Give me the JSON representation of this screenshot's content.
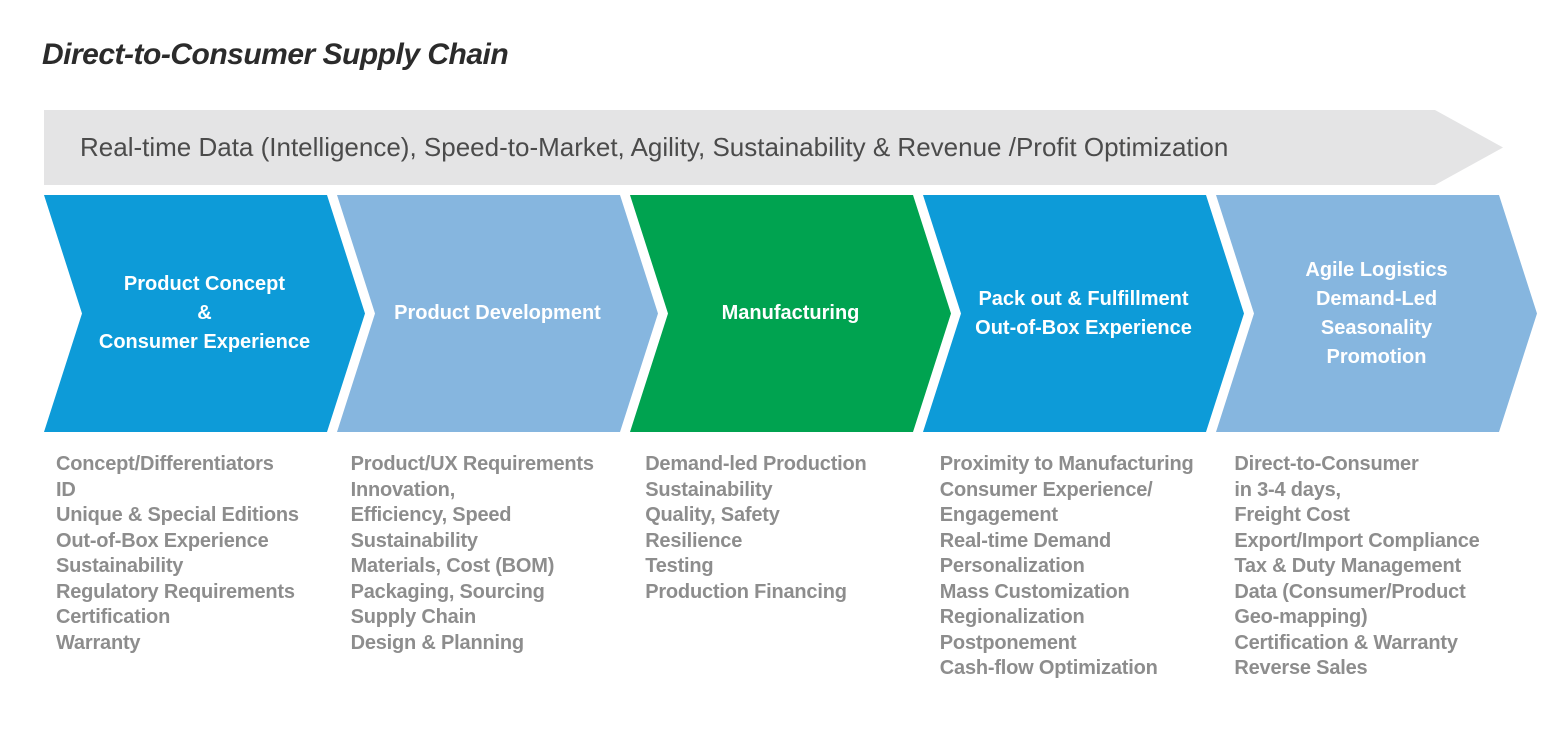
{
  "page": {
    "title": "Direct-to-Consumer Supply Chain"
  },
  "banner": {
    "text": "Real-time Data (Intelligence), Speed-to-Market, Agility, Sustainability & Revenue /Profit Optimization",
    "bg_color": "#e4e4e5",
    "text_color": "#4b4b4b"
  },
  "colors": {
    "blue": "#0d9bd8",
    "light_blue": "#86b6df",
    "green": "#00a350",
    "title_text": "#2b2b2b",
    "list_text": "#8d8d8d",
    "stage_label_text": "#ffffff"
  },
  "stages": [
    {
      "label_lines": [
        "Product Concept",
        "&",
        "Consumer Experience"
      ],
      "color_key": "blue",
      "items": [
        "Concept/Differentiators",
        "ID",
        "Unique & Special Editions",
        "Out-of-Box Experience",
        "Sustainability",
        "Regulatory Requirements",
        "Certification",
        "Warranty"
      ]
    },
    {
      "label_lines": [
        "Product Development"
      ],
      "color_key": "light_blue",
      "items": [
        "Product/UX Requirements",
        "Innovation,",
        "Efficiency, Speed",
        "Sustainability",
        "Materials, Cost (BOM)",
        "Packaging, Sourcing",
        "Supply Chain",
        "Design & Planning"
      ]
    },
    {
      "label_lines": [
        "Manufacturing"
      ],
      "color_key": "green",
      "items": [
        "Demand-led Production",
        "Sustainability",
        "Quality, Safety",
        "Resilience",
        "Testing",
        "Production Financing"
      ]
    },
    {
      "label_lines": [
        "Pack out & Fulfillment",
        "Out-of-Box Experience"
      ],
      "color_key": "blue",
      "items": [
        "Proximity to Manufacturing",
        "Consumer Experience/",
        "Engagement",
        "Real-time Demand",
        "Personalization",
        "Mass Customization",
        "Regionalization",
        "Postponement",
        "Cash-flow Optimization"
      ]
    },
    {
      "label_lines": [
        "Agile Logistics",
        "Demand-Led",
        "Seasonality",
        "Promotion"
      ],
      "color_key": "light_blue",
      "items": [
        "Direct-to-Consumer",
        "in 3-4 days,",
        "Freight Cost",
        "Export/Import Compliance",
        "Tax & Duty Management",
        "Data (Consumer/Product",
        "Geo-mapping)",
        "Certification & Warranty",
        "Reverse Sales"
      ]
    }
  ]
}
